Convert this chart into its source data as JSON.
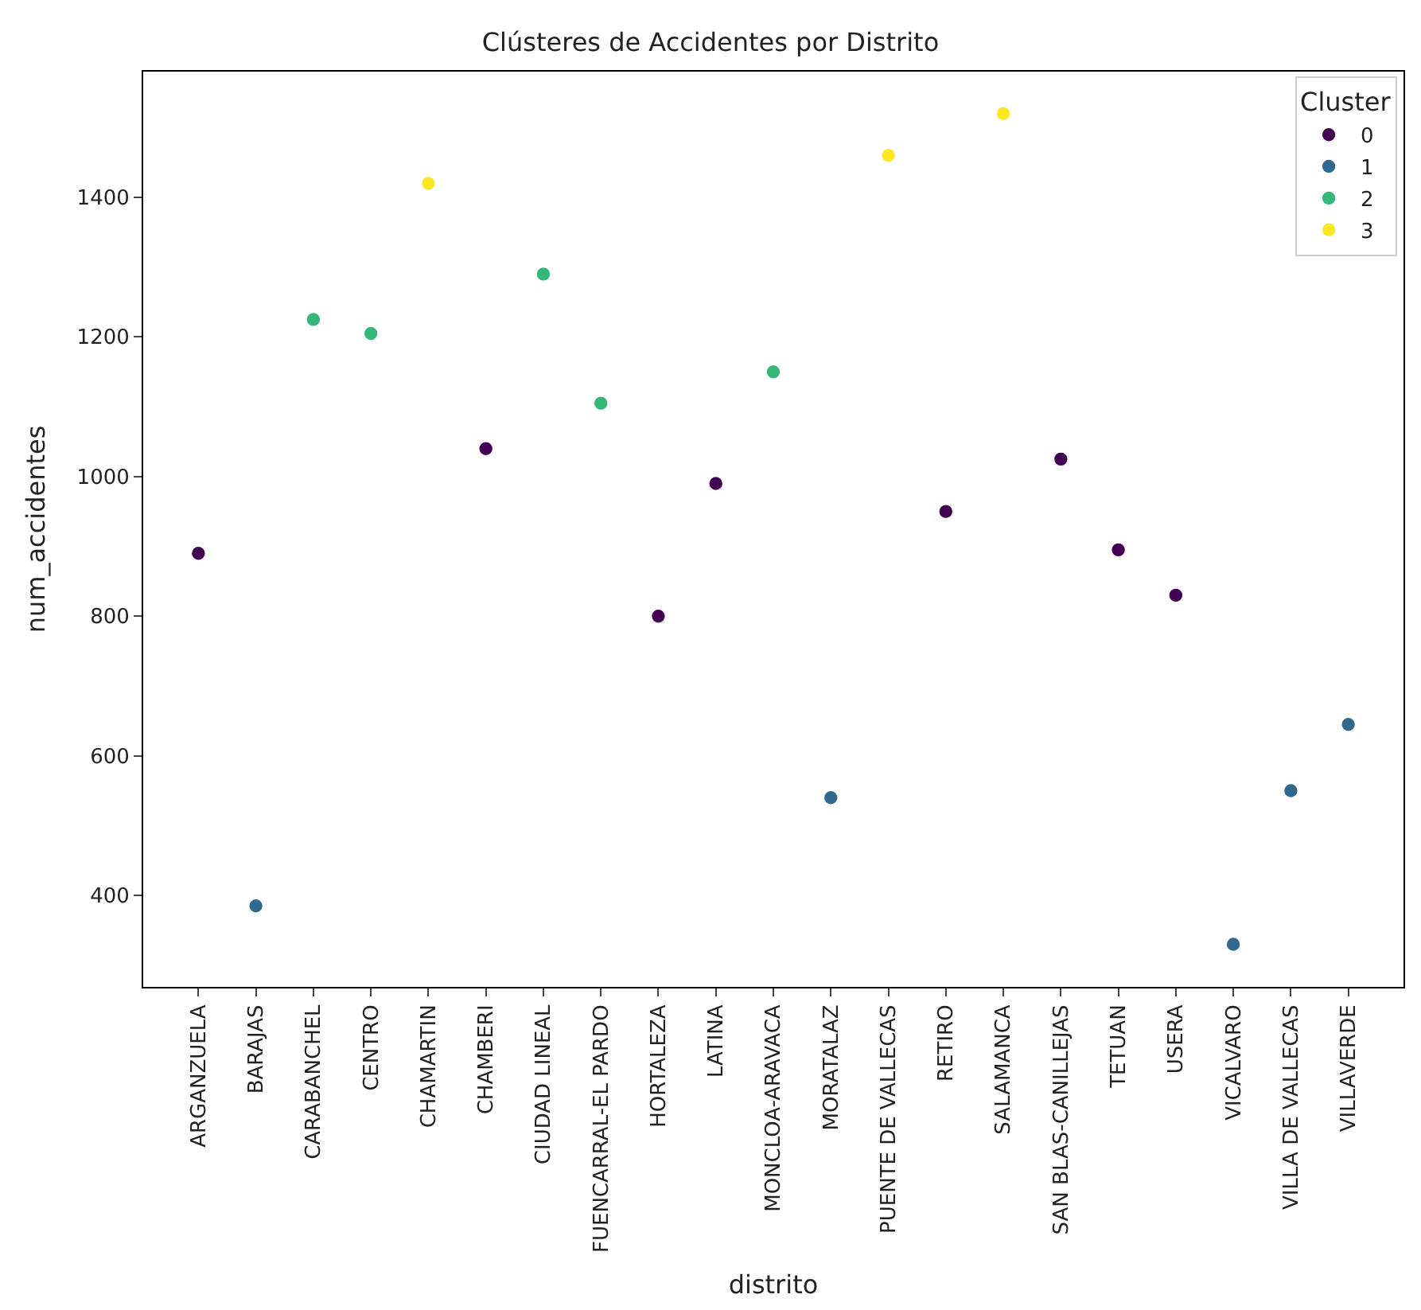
{
  "chart_data": {
    "type": "scatter",
    "title": "Clústeres de Accidentes por Distrito",
    "xlabel": "distrito",
    "ylabel": "num_accidentes",
    "legend_title": "Cluster",
    "legend": "top right",
    "marker": "circle",
    "categories": [
      "ARGANZUELA",
      "BARAJAS",
      "CARABANCHEL",
      "CENTRO",
      "CHAMARTIN",
      "CHAMBERI",
      "CIUDAD LINEAL",
      "FUENCARRAL-EL PARDO",
      "HORTALEZA",
      "LATINA",
      "MONCLOA-ARAVACA",
      "MORATALAZ",
      "PUENTE DE VALLECAS",
      "RETIRO",
      "SALAMANCA",
      "SAN BLAS-CANILLEJAS",
      "TETUAN",
      "USERA",
      "VICALVARO",
      "VILLA DE VALLECAS",
      "VILLAVERDE"
    ],
    "ylim": [
      269,
      1580
    ],
    "yticks": [
      400,
      600,
      800,
      1000,
      1200,
      1400
    ],
    "series": [
      {
        "name": "0",
        "color": "#440154",
        "x": [
          "ARGANZUELA",
          "CHAMBERI",
          "HORTALEZA",
          "LATINA",
          "RETIRO",
          "SAN BLAS-CANILLEJAS",
          "TETUAN",
          "USERA"
        ],
        "values": [
          890,
          1040,
          800,
          990,
          950,
          1025,
          895,
          830
        ]
      },
      {
        "name": "1",
        "color": "#31688e",
        "x": [
          "BARAJAS",
          "MORATALAZ",
          "VICALVARO",
          "VILLA DE VALLECAS",
          "VILLAVERDE"
        ],
        "values": [
          385,
          540,
          330,
          550,
          645
        ]
      },
      {
        "name": "2",
        "color": "#35b779",
        "x": [
          "CARABANCHEL",
          "CENTRO",
          "CIUDAD LINEAL",
          "FUENCARRAL-EL PARDO",
          "MONCLOA-ARAVACA"
        ],
        "values": [
          1225,
          1205,
          1290,
          1105,
          1150
        ]
      },
      {
        "name": "3",
        "color": "#fde725",
        "x": [
          "CHAMARTIN",
          "PUENTE DE VALLECAS",
          "SALAMANCA"
        ],
        "values": [
          1420,
          1460,
          1520
        ]
      }
    ]
  }
}
